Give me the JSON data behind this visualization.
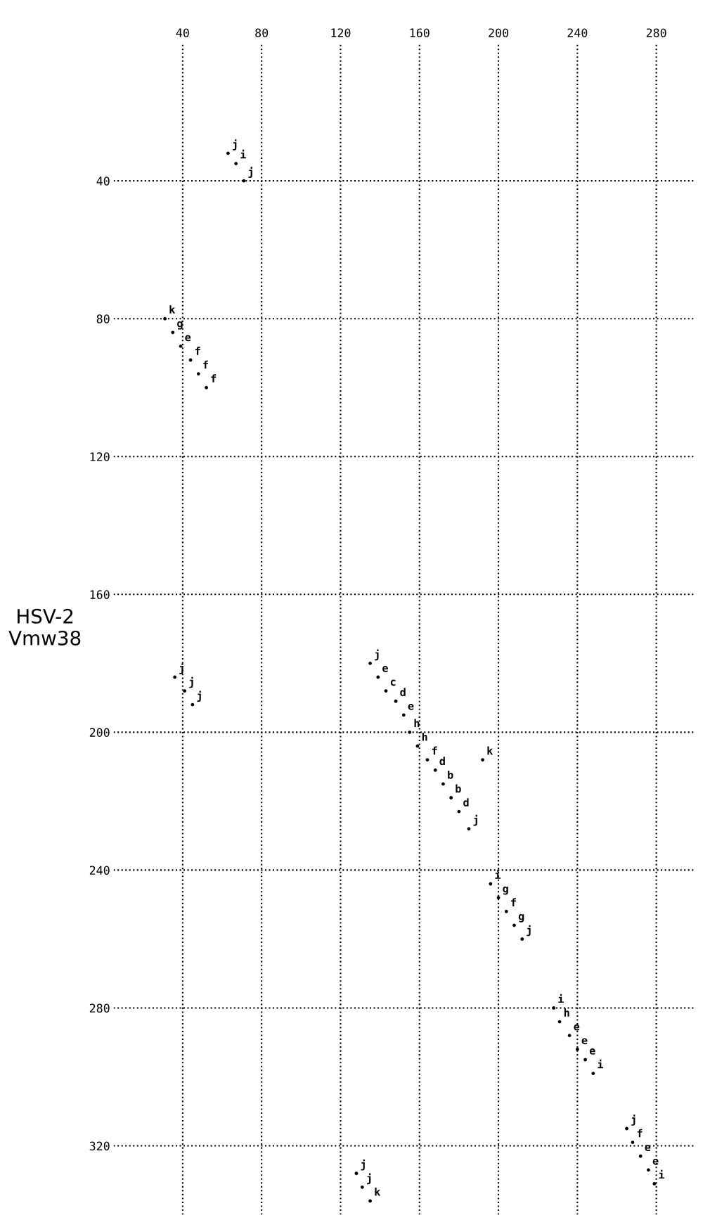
{
  "chart_data": {
    "type": "scatter",
    "ylabel": "HSV-2\nVmw38",
    "x": [
      63,
      67,
      71,
      31,
      35,
      39,
      44,
      48,
      52,
      36,
      41,
      45,
      135,
      139,
      143,
      148,
      152,
      155,
      159,
      164,
      192,
      168,
      172,
      176,
      180,
      185,
      196,
      200,
      204,
      208,
      212,
      228,
      231,
      236,
      240,
      244,
      248,
      265,
      268,
      272,
      276,
      279,
      128,
      131,
      135
    ],
    "values": [
      32,
      35,
      40,
      80,
      84,
      88,
      92,
      96,
      100,
      184,
      188,
      192,
      180,
      184,
      188,
      191,
      195,
      200,
      204,
      208,
      208,
      211,
      215,
      219,
      223,
      228,
      244,
      248,
      252,
      256,
      260,
      280,
      284,
      288,
      292,
      295,
      299,
      315,
      319,
      323,
      327,
      331,
      328,
      332,
      336
    ],
    "value_labels": [
      "j",
      "i",
      "j",
      "k",
      "g",
      "e",
      "f",
      "f",
      "f",
      "j",
      "j",
      "j",
      "j",
      "e",
      "c",
      "d",
      "e",
      "h",
      "h",
      "f",
      "k",
      "d",
      "b",
      "b",
      "d",
      "j",
      "i",
      "g",
      "f",
      "g",
      "j",
      "i",
      "h",
      "e",
      "e",
      "e",
      "i",
      "j",
      "f",
      "e",
      "e",
      "i",
      "j",
      "j",
      "k"
    ],
    "color": "#000000",
    "marker": "circle",
    "xlim": [
      5,
      300
    ],
    "ylim": [
      340,
      0
    ],
    "xticks": [
      40,
      80,
      120,
      160,
      200,
      240,
      280
    ],
    "yticks": [
      40,
      80,
      120,
      160,
      200,
      240,
      280,
      320
    ],
    "grid": true,
    "line_style": "dotted"
  }
}
